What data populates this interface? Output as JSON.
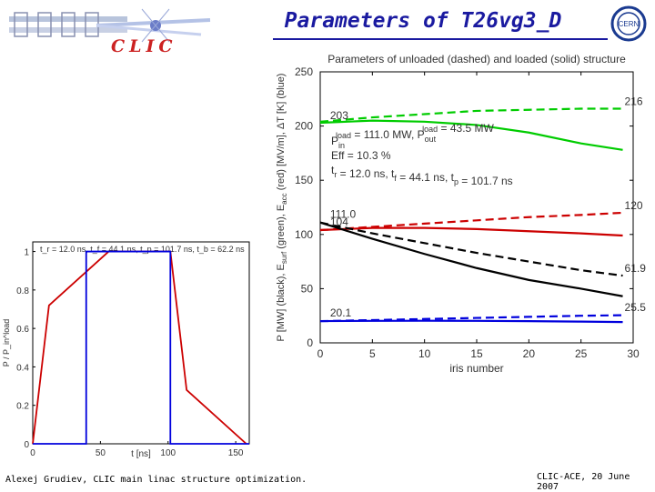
{
  "slide": {
    "title": "Parameters of T26vg3_D",
    "logo_text": "CLIC",
    "cern_logo_text": "CERN",
    "footer_left": "Alexej Grudiev, CLIC main linac structure optimization.",
    "footer_right": "CLIC-ACE, 20 June 2007"
  },
  "chart_data": [
    {
      "type": "line",
      "title": "Parameters of unloaded (dashed) and loaded (solid) structure",
      "xlabel": "iris number",
      "ylabel": "P [MW] (black), Esurf (green), Eacc (red) [MV/m], ΔT [K] (blue)",
      "ylabel_parts": {
        "p": "P [MW] (black), E",
        "esurf": "surf",
        "mid": " (green), E",
        "eacc": "acc",
        "end": " (red) [MV/m], ΔT [K] (blue)"
      },
      "xlim": [
        0,
        30
      ],
      "ylim": [
        0,
        250
      ],
      "xticks": [
        0,
        5,
        10,
        15,
        20,
        25,
        30
      ],
      "yticks": [
        0,
        50,
        100,
        150,
        200,
        250
      ],
      "grid": false,
      "series": [
        {
          "color": "#00cc00",
          "dash": true,
          "x": [
            0,
            5,
            10,
            15,
            20,
            25,
            29
          ],
          "values": [
            204,
            208,
            211,
            214,
            215,
            216,
            216
          ]
        },
        {
          "color": "#00cc00",
          "dash": false,
          "x": [
            0,
            5,
            10,
            15,
            20,
            25,
            29
          ],
          "values": [
            203,
            205,
            204,
            201,
            194,
            184,
            178
          ]
        },
        {
          "color": "#cc0000",
          "dash": true,
          "x": [
            0,
            5,
            10,
            15,
            20,
            25,
            29
          ],
          "values": [
            104,
            107,
            110,
            113,
            116,
            118,
            120
          ]
        },
        {
          "color": "#cc0000",
          "dash": false,
          "x": [
            0,
            5,
            10,
            15,
            20,
            25,
            29
          ],
          "values": [
            104,
            106,
            106,
            105,
            103,
            101,
            99
          ]
        },
        {
          "color": "#000000",
          "dash": true,
          "x": [
            0,
            5,
            10,
            15,
            20,
            25,
            29
          ],
          "values": [
            111,
            101,
            92,
            83,
            75,
            67,
            62
          ]
        },
        {
          "color": "#000000",
          "dash": false,
          "x": [
            0,
            5,
            10,
            15,
            20,
            25,
            29
          ],
          "values": [
            111,
            96,
            82,
            69,
            58,
            50,
            43
          ]
        },
        {
          "color": "#0000dd",
          "dash": true,
          "x": [
            0,
            5,
            10,
            15,
            20,
            25,
            29
          ],
          "values": [
            20,
            21,
            22,
            23,
            24,
            25,
            25.5
          ]
        },
        {
          "color": "#0000dd",
          "dash": false,
          "x": [
            0,
            5,
            10,
            15,
            20,
            25,
            29
          ],
          "values": [
            20.1,
            20.3,
            20.4,
            20.3,
            20.0,
            19.6,
            19.2
          ]
        }
      ],
      "annotations": [
        {
          "text": "203",
          "x": 0.6,
          "y": 203
        },
        {
          "text": "216",
          "x": 29.0,
          "y": 216
        },
        {
          "text": "111.0",
          "x": 0.6,
          "y": 112
        },
        {
          "text": "104",
          "x": 0.6,
          "y": 105
        },
        {
          "text": "120",
          "x": 29.0,
          "y": 120
        },
        {
          "text": "61.9",
          "x": 29.0,
          "y": 62
        },
        {
          "text": "20.1",
          "x": 0.6,
          "y": 21
        },
        {
          "text": "25.5",
          "x": 29.0,
          "y": 26
        }
      ],
      "info_lines": [
        {
          "parts": [
            "P",
            "in",
            "load",
            " = 111.0 MW, P",
            "out",
            "load",
            " =  43.5 MW"
          ]
        },
        {
          "parts": [
            "Eff = 10.3 %"
          ]
        },
        {
          "parts": [
            "t",
            "r",
            "",
            " = 12.0 ns, t",
            "f",
            "",
            " = 44.1 ns, t",
            "p",
            "",
            " = 101.7 ns"
          ]
        }
      ]
    },
    {
      "type": "line",
      "title": "t_r = 12.0 ns, t_f = 44.1 ns, t_p = 101.7 ns, t_b = 62.2 ns",
      "xlabel": "t [ns]",
      "ylabel": "P / P_in^load",
      "xlim": [
        0,
        160
      ],
      "ylim": [
        0,
        1.05
      ],
      "xticks": [
        0,
        50,
        100,
        150
      ],
      "yticks": [
        0,
        0.2,
        0.4,
        0.6,
        0.8,
        1
      ],
      "ytick_labels": [
        "0",
        "0.2",
        "0.4",
        "0.6",
        "0.8",
        "1"
      ],
      "series": [
        {
          "color": "#cc0000",
          "x": [
            0,
            12,
            56.1,
            101.7,
            113.7,
            157.8
          ],
          "values": [
            0,
            0.72,
            1.0,
            1.0,
            0.28,
            0
          ]
        },
        {
          "color": "#0000dd",
          "x": [
            0,
            39.5,
            39.5,
            101.7,
            101.7,
            160
          ],
          "values": [
            0,
            0,
            1.0,
            1.0,
            0,
            0
          ]
        }
      ]
    }
  ]
}
